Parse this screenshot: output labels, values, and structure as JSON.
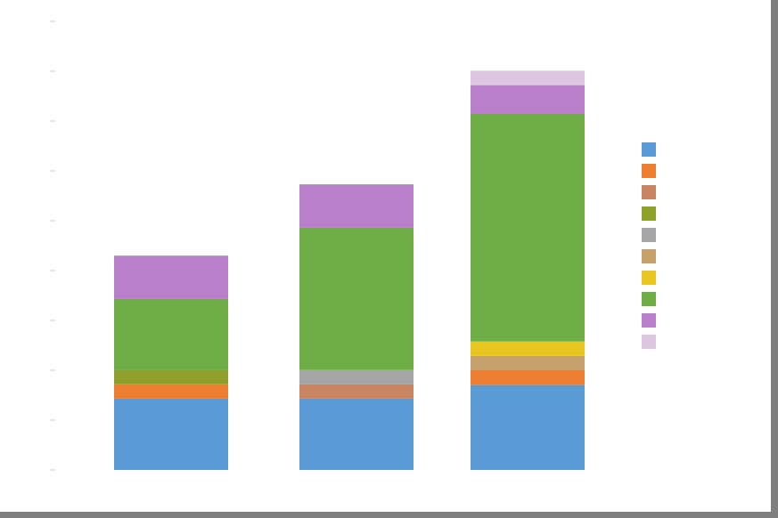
{
  "chart_data": {
    "type": "stacked_bar",
    "categories": [
      null,
      null,
      null
    ],
    "series": [
      {
        "color": "#5b9bd5",
        "values": [
          1.43,
          1.43,
          1.71
        ]
      },
      {
        "color": "#ed7d31",
        "values": [
          0.29,
          null,
          0.29
        ]
      },
      {
        "color": "#c9855f",
        "values": [
          null,
          0.29,
          null
        ]
      },
      {
        "color": "#8fa02a",
        "values": [
          0.29,
          null,
          null
        ]
      },
      {
        "color": "#a5a5a5",
        "values": [
          null,
          0.29,
          null
        ]
      },
      {
        "color": "#c4a06a",
        "values": [
          null,
          null,
          0.29
        ]
      },
      {
        "color": "#e8c51f",
        "values": [
          null,
          null,
          0.29
        ]
      },
      {
        "color": "#70ad47",
        "values": [
          1.43,
          2.86,
          4.57
        ]
      },
      {
        "color": "#b880c8",
        "values": [
          0.86,
          0.86,
          0.57
        ]
      },
      {
        "color": "#dcc6e0",
        "values": [
          null,
          null,
          0.29
        ]
      }
    ],
    "ylim": [
      0,
      9
    ],
    "yticks": [
      0,
      1,
      2,
      3,
      4,
      5,
      6,
      7,
      8,
      9
    ]
  }
}
